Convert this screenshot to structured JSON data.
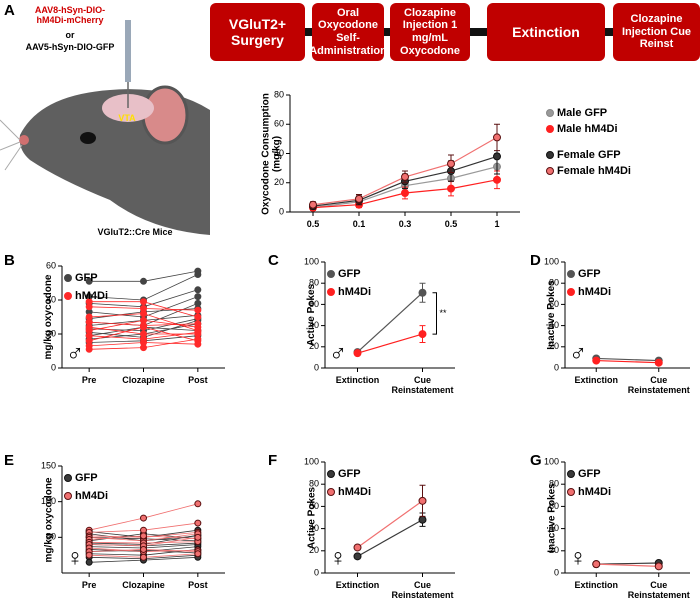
{
  "panel_a": {
    "label": "A",
    "timeline": [
      "VGluT2+ Surgery",
      "Oral Oxycodone Self-Administration",
      "Clozapine Injection 1 mg/mL Oxycodone",
      "Extinction",
      "Clozapine Injection Cue Reinst"
    ],
    "illustration": {
      "virus_1": "AAV8-hSyn-DIO-hM4Di-mCherry",
      "or": "or",
      "virus_2": "AAV5-hSyn-DIO-GFP",
      "region": "VTA",
      "mice": "VGluT2::Cre Mice"
    }
  },
  "chart_data": [
    {
      "type": "line",
      "ylabel": "Oxycodone Consumption (mg/kg)",
      "categories": [
        "0.5",
        "0.1",
        "0.3",
        "0.5",
        "1"
      ],
      "ylim": [
        0,
        80
      ],
      "yticks": [
        0,
        20,
        40,
        60,
        80
      ],
      "legend": "right",
      "series": [
        {
          "name": "Male GFP",
          "color": "#999999",
          "edgecolor": "#888888",
          "values": [
            3,
            7,
            18,
            23,
            31
          ],
          "errors": [
            2,
            3,
            5,
            6,
            9
          ]
        },
        {
          "name": "Male hM4Di",
          "color": "#ff2020",
          "edgecolor": "#ff2020",
          "values": [
            3,
            5,
            13,
            16,
            22
          ],
          "errors": [
            2,
            2,
            4,
            5,
            6
          ]
        },
        {
          "name": "Female GFP",
          "color": "#333333",
          "edgecolor": "#111111",
          "values": [
            4,
            8,
            21,
            28,
            38
          ],
          "errors": [
            2,
            3,
            5,
            7,
            12
          ]
        },
        {
          "name": "Female hM4Di",
          "color": "#f07070",
          "edgecolor": "#5a1010",
          "values": [
            5,
            9,
            24,
            33,
            51
          ],
          "errors": [
            2,
            3,
            4,
            6,
            9
          ]
        }
      ]
    },
    {
      "type": "paired",
      "panel_label": "B",
      "ylabel": "mg/kg oxycodone",
      "categories": [
        "Pre",
        "Clozapine",
        "Post"
      ],
      "ylim": [
        0,
        60
      ],
      "yticks": [
        0,
        20,
        40,
        60
      ],
      "legend": "upper left",
      "sex_symbol": "♂",
      "series": [
        {
          "name": "GFP",
          "color": "#444444",
          "edgecolor": "#444444",
          "subjects": [
            [
              51,
              51,
              57
            ],
            [
              42,
              40,
              55
            ],
            [
              38,
              36,
              46
            ],
            [
              33,
              30,
              42
            ],
            [
              29,
              33,
              35
            ],
            [
              27,
              25,
              38
            ],
            [
              25,
              28,
              31
            ],
            [
              23,
              22,
              29
            ],
            [
              21,
              18,
              28
            ],
            [
              19,
              24,
              22
            ],
            [
              17,
              20,
              26
            ],
            [
              15,
              16,
              19
            ]
          ]
        },
        {
          "name": "hM4Di",
          "color": "#ff2a2a",
          "edgecolor": "#ff2a2a",
          "subjects": [
            [
              39,
              39,
              30
            ],
            [
              36,
              35,
              34
            ],
            [
              30,
              32,
              22
            ],
            [
              27,
              25,
              26
            ],
            [
              24,
              20,
              20
            ],
            [
              22,
              28,
              24
            ],
            [
              19,
              17,
              21
            ],
            [
              16,
              24,
              16
            ],
            [
              13,
              15,
              14
            ],
            [
              11,
              12,
              17
            ]
          ]
        }
      ]
    },
    {
      "type": "line",
      "panel_label": "C",
      "ylabel": "Active Pokes",
      "categories": [
        "Extinction",
        "Cue Reinstatement"
      ],
      "ylim": [
        0,
        100
      ],
      "yticks": [
        0,
        20,
        40,
        60,
        80,
        100
      ],
      "legend": "upper left",
      "sex_symbol": "♂",
      "annotation": "**",
      "series": [
        {
          "name": "GFP",
          "color": "#555555",
          "edgecolor": "#555555",
          "values": [
            15,
            71
          ],
          "errors": [
            2,
            9
          ]
        },
        {
          "name": "hM4Di",
          "color": "#ff2020",
          "edgecolor": "#ff2020",
          "values": [
            14,
            32
          ],
          "errors": [
            2,
            8
          ]
        }
      ]
    },
    {
      "type": "line",
      "panel_label": "D",
      "ylabel": "Inactive Pokes",
      "categories": [
        "Extinction",
        "Cue Reinstatement"
      ],
      "ylim": [
        0,
        100
      ],
      "yticks": [
        0,
        20,
        40,
        60,
        80,
        100
      ],
      "legend": "upper left",
      "sex_symbol": "♂",
      "series": [
        {
          "name": "GFP",
          "color": "#555555",
          "edgecolor": "#555555",
          "values": [
            9,
            7
          ],
          "errors": [
            2,
            1
          ]
        },
        {
          "name": "hM4Di",
          "color": "#ff2020",
          "edgecolor": "#ff2020",
          "values": [
            7,
            5
          ],
          "errors": [
            1,
            1
          ]
        }
      ]
    },
    {
      "type": "paired",
      "panel_label": "E",
      "ylabel": "mg/kg oxycodone",
      "categories": [
        "Pre",
        "Clozapine",
        "Post"
      ],
      "ylim": [
        0,
        150
      ],
      "yticks": [
        50,
        100,
        150
      ],
      "legend": "upper left",
      "sex_symbol": "♀",
      "series": [
        {
          "name": "GFP",
          "color": "#3a3a3a",
          "edgecolor": "#111111",
          "subjects": [
            [
              58,
              50,
              60
            ],
            [
              55,
              45,
              52
            ],
            [
              50,
              48,
              45
            ],
            [
              45,
              55,
              48
            ],
            [
              42,
              40,
              53
            ],
            [
              40,
              38,
              42
            ],
            [
              37,
              35,
              40
            ],
            [
              33,
              30,
              37
            ],
            [
              30,
              32,
              28
            ],
            [
              27,
              25,
              33
            ],
            [
              22,
              20,
              25
            ],
            [
              15,
              18,
              22
            ]
          ]
        },
        {
          "name": "hM4Di",
          "color": "#f07070",
          "edgecolor": "#5a1010",
          "subjects": [
            [
              60,
              77,
              97
            ],
            [
              57,
              60,
              70
            ],
            [
              52,
              50,
              57
            ],
            [
              50,
              45,
              55
            ],
            [
              47,
              52,
              48
            ],
            [
              43,
              42,
              44
            ],
            [
              40,
              38,
              50
            ],
            [
              35,
              30,
              32
            ],
            [
              30,
              33,
              30
            ],
            [
              25,
              22,
              27
            ]
          ]
        }
      ]
    },
    {
      "type": "line",
      "panel_label": "F",
      "ylabel": "Active Pokes",
      "categories": [
        "Extinction",
        "Cue Reinstatement"
      ],
      "ylim": [
        0,
        100
      ],
      "yticks": [
        0,
        20,
        40,
        60,
        80,
        100
      ],
      "legend": "upper left",
      "sex_symbol": "♀",
      "series": [
        {
          "name": "GFP",
          "color": "#3a3a3a",
          "edgecolor": "#111111",
          "values": [
            15,
            48
          ],
          "errors": [
            2,
            6
          ]
        },
        {
          "name": "hM4Di",
          "color": "#f07070",
          "edgecolor": "#5a1010",
          "values": [
            23,
            65
          ],
          "errors": [
            2,
            14
          ]
        }
      ]
    },
    {
      "type": "line",
      "panel_label": "G",
      "ylabel": "Inactive Pokes",
      "categories": [
        "Extinction",
        "Cue Reinstatement"
      ],
      "ylim": [
        0,
        100
      ],
      "yticks": [
        0,
        20,
        40,
        60,
        80,
        100
      ],
      "legend": "upper left",
      "sex_symbol": "♀",
      "series": [
        {
          "name": "GFP",
          "color": "#3a3a3a",
          "edgecolor": "#111111",
          "values": [
            8,
            9
          ],
          "errors": [
            1,
            1
          ]
        },
        {
          "name": "hM4Di",
          "color": "#f07070",
          "edgecolor": "#5a1010",
          "values": [
            8,
            6
          ],
          "errors": [
            1,
            1
          ]
        }
      ]
    }
  ]
}
